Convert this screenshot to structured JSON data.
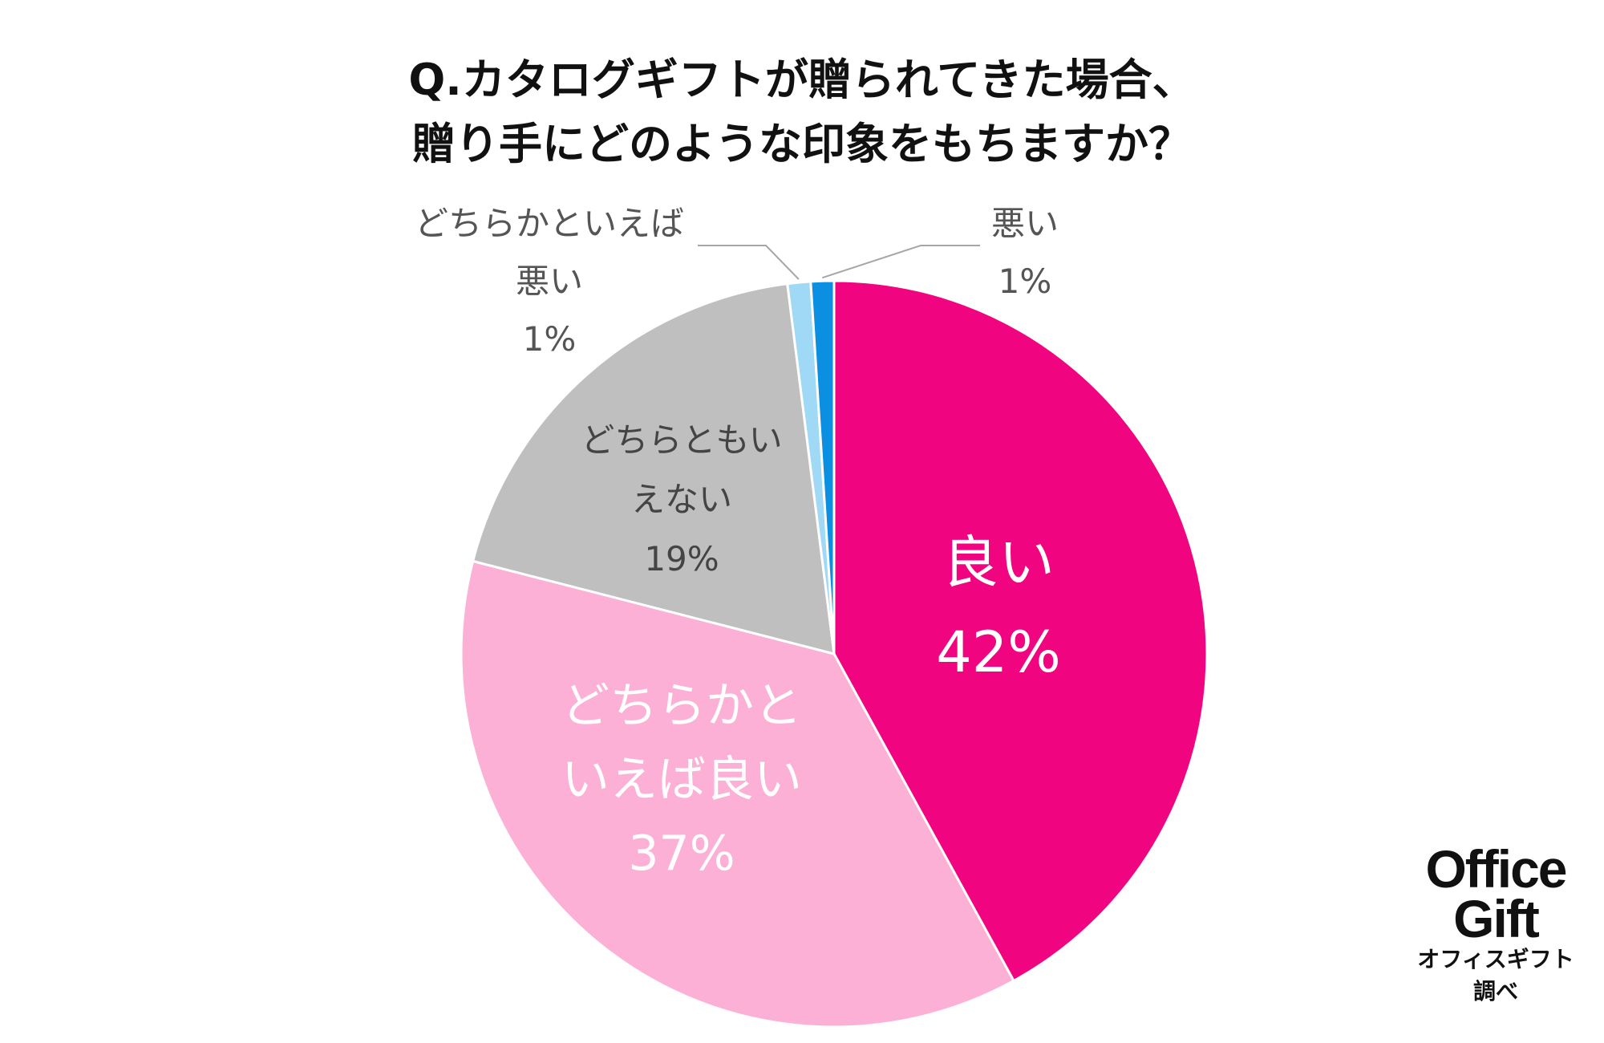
{
  "title_lines": [
    "Q.カタログギフトが贈られてきた場合、",
    "贈り手にどのような印象をもちますか？"
  ],
  "chart_data": {
    "type": "pie",
    "title": "Q.カタログギフトが贈られてきた場合、贈り手にどのような印象をもちますか？",
    "unit": "%",
    "start": "12 o'clock, clockwise",
    "slices": [
      {
        "label": "良い",
        "label_lines": [
          "良い",
          "42%"
        ],
        "value": 42,
        "value_label": "42%",
        "color": "#f0047f",
        "label_color": "#ffffff",
        "placement": "inside"
      },
      {
        "label": "どちらかといえば良い",
        "label_lines": [
          "どちらかと",
          "いえば良い",
          "37%"
        ],
        "value": 37,
        "value_label": "37%",
        "color": "#fdb0d6",
        "label_color": "#ffffff",
        "placement": "inside"
      },
      {
        "label": "どちらともいえない",
        "label_lines": [
          "どちらともい",
          "えない",
          "19%"
        ],
        "value": 19,
        "value_label": "19%",
        "color": "#bfbfbf",
        "label_color": "#444444",
        "placement": "inside"
      },
      {
        "label": "どちらかといえば悪い",
        "label_lines": [
          "どちらかといえば",
          "悪い",
          "1%"
        ],
        "value": 1,
        "value_label": "1%",
        "color": "#9fd9f6",
        "label_color": "#555555",
        "placement": "outside-left"
      },
      {
        "label": "悪い",
        "label_lines": [
          "悪い",
          "1%"
        ],
        "value": 1,
        "value_label": "1%",
        "color": "#0b8fe0",
        "label_color": "#555555",
        "placement": "outside-right"
      }
    ]
  },
  "logo": {
    "line1": "Office",
    "line2": "Gift",
    "sub1": "オフィスギフト",
    "sub2": "調べ"
  }
}
